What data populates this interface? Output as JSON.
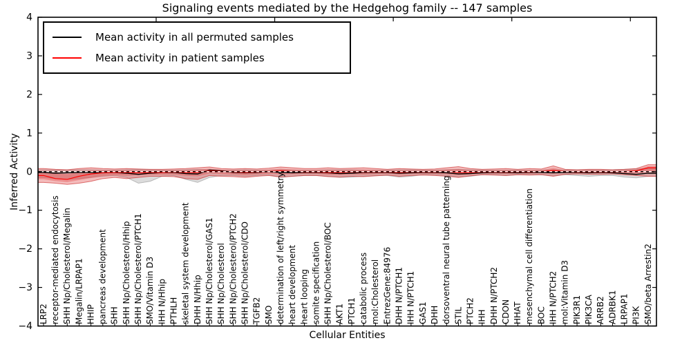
{
  "figure": {
    "title": "Signaling events mediated by the Hedgehog family -- 147 samples",
    "xlabel": "Cellular Entities",
    "ylabel": "Inferred Activity"
  },
  "axes": {
    "ylim": [
      -4,
      4
    ],
    "yticks": [
      "4",
      "3",
      "2",
      "1",
      "0",
      "−1",
      "−2",
      "−3",
      "−4"
    ],
    "top_major_ticks_at": [
      10,
      20,
      30,
      40,
      50
    ]
  },
  "colors": {
    "permuted_line": "#000000",
    "patient_line": "#ff0000",
    "patient_band": "#e04040",
    "permuted_band": "#8a8a8a",
    "axis": "#000000"
  },
  "chart_data": {
    "type": "line",
    "title": "Signaling events mediated by the Hedgehog family -- 147 samples",
    "xlabel": "Cellular Entities",
    "ylabel": "Inferred Activity",
    "ylim": [
      -4,
      4
    ],
    "grid": false,
    "legend_position": "upper left",
    "zero_line": "black-white dashed at y=0",
    "categories": [
      "LRP2",
      "receptor-mediated endocytosis",
      "SHH Np/Cholesterol/Megalin",
      "Megalin/LRPAP1",
      "HHIP",
      "pancreas development",
      "SHH",
      "SHH Np/Cholesterol/Hhip",
      "SHH Np/Cholesterol/PTCH1",
      "SMO/Vitamin D3",
      "IHH N/Hhip",
      "PTHLH",
      "skeletal system development",
      "DHH N/Hhip",
      "SHH Np/Cholesterol/GAS1",
      "SHH Np/Cholesterol",
      "SHH Np/Cholesterol/PTCH2",
      "SHH Np/Cholesterol/CDO",
      "TGFB2",
      "SMO",
      "determination of left/right symmetry",
      "heart development",
      "heart looping",
      "somite specification",
      "SHH Np/Cholesterol/BOC",
      "AKT1",
      "PTCH1",
      "catabolic process",
      "mol:Cholesterol",
      "EntrezGene:84976",
      "DHH N/PTCH1",
      "IHH N/PTCH1",
      "GAS1",
      "DHH",
      "dorsoventral neural tube patterning",
      "STIL",
      "PTCH2",
      "IHH",
      "DHH N/PTCH2",
      "CDON",
      "HHAT",
      "mesenchymal cell differentiation",
      "BOC",
      "IHH N/PTCH2",
      "mol:Vitamin D3",
      "PIK3R1",
      "PIK3CA",
      "ARRB2",
      "ADRBK1",
      "LRPAP1",
      "PI3K",
      "SMO/beta Arrestin2"
    ],
    "series": [
      {
        "name": "Mean activity in all permuted samples",
        "type": "line",
        "color": "#000000",
        "values": [
          -0.02,
          -0.04,
          -0.03,
          -0.02,
          -0.02,
          -0.03,
          -0.02,
          -0.04,
          -0.07,
          -0.04,
          -0.02,
          -0.02,
          -0.05,
          -0.06,
          0.04,
          0.02,
          -0.02,
          -0.03,
          -0.02,
          0.0,
          -0.02,
          -0.03,
          -0.02,
          -0.02,
          -0.03,
          -0.05,
          -0.04,
          -0.02,
          -0.02,
          -0.02,
          -0.04,
          -0.03,
          -0.02,
          -0.02,
          -0.03,
          -0.06,
          -0.05,
          -0.03,
          -0.02,
          -0.02,
          -0.03,
          -0.02,
          -0.02,
          -0.03,
          -0.02,
          -0.02,
          -0.03,
          -0.02,
          -0.03,
          -0.05,
          -0.07,
          -0.04
        ]
      },
      {
        "name": "Mean activity in patient samples",
        "type": "line",
        "color": "#ff0000",
        "values": [
          -0.1,
          -0.18,
          -0.2,
          -0.12,
          -0.06,
          -0.03,
          -0.02,
          -0.02,
          -0.03,
          -0.02,
          -0.02,
          -0.01,
          -0.02,
          -0.02,
          0.02,
          0.01,
          -0.01,
          -0.02,
          -0.01,
          0.0,
          0.02,
          0.0,
          -0.01,
          -0.01,
          -0.02,
          -0.02,
          -0.01,
          -0.01,
          -0.01,
          -0.01,
          -0.02,
          -0.01,
          -0.01,
          -0.01,
          0.0,
          -0.02,
          -0.02,
          -0.01,
          -0.01,
          -0.01,
          -0.01,
          -0.01,
          0.0,
          0.03,
          0.0,
          -0.01,
          -0.01,
          -0.01,
          -0.01,
          0.0,
          0.02,
          0.1
        ]
      },
      {
        "name": "Patient samples std band",
        "type": "band",
        "color": "#e04040",
        "upper": [
          0.08,
          0.06,
          0.05,
          0.08,
          0.1,
          0.08,
          0.07,
          0.08,
          0.07,
          0.06,
          0.06,
          0.07,
          0.08,
          0.1,
          0.12,
          0.08,
          0.07,
          0.08,
          0.07,
          0.09,
          0.12,
          0.1,
          0.08,
          0.08,
          0.1,
          0.08,
          0.09,
          0.1,
          0.08,
          0.06,
          0.08,
          0.07,
          0.06,
          0.07,
          0.1,
          0.13,
          0.08,
          0.06,
          0.07,
          0.08,
          0.06,
          0.08,
          0.07,
          0.15,
          0.06,
          0.05,
          0.06,
          0.06,
          0.05,
          0.06,
          0.08,
          0.18
        ],
        "lower": [
          -0.28,
          -0.3,
          -0.33,
          -0.3,
          -0.25,
          -0.18,
          -0.15,
          -0.18,
          -0.15,
          -0.12,
          -0.12,
          -0.13,
          -0.18,
          -0.2,
          -0.1,
          -0.12,
          -0.13,
          -0.15,
          -0.12,
          -0.1,
          -0.14,
          -0.12,
          -0.1,
          -0.1,
          -0.13,
          -0.14,
          -0.12,
          -0.13,
          -0.11,
          -0.09,
          -0.12,
          -0.1,
          -0.09,
          -0.1,
          -0.12,
          -0.15,
          -0.11,
          -0.08,
          -0.09,
          -0.1,
          -0.08,
          -0.09,
          -0.08,
          -0.12,
          -0.07,
          -0.06,
          -0.07,
          -0.07,
          -0.06,
          -0.08,
          -0.1,
          -0.12
        ]
      },
      {
        "name": "Permuted samples std band",
        "type": "band",
        "color": "#8a8a8a",
        "upper": [
          0.05,
          0.04,
          0.04,
          0.05,
          0.05,
          0.04,
          0.04,
          0.05,
          0.06,
          0.05,
          0.04,
          0.04,
          0.05,
          0.06,
          0.05,
          0.04,
          0.04,
          0.05,
          0.04,
          0.04,
          0.05,
          0.04,
          0.04,
          0.04,
          0.05,
          0.05,
          0.05,
          0.04,
          0.04,
          0.04,
          0.05,
          0.05,
          0.04,
          0.04,
          0.05,
          0.06,
          0.05,
          0.04,
          0.04,
          0.04,
          0.04,
          0.04,
          0.04,
          0.05,
          0.04,
          0.05,
          0.05,
          0.04,
          0.05,
          0.06,
          0.07,
          0.08
        ],
        "lower": [
          -0.15,
          -0.18,
          -0.2,
          -0.18,
          -0.15,
          -0.12,
          -0.1,
          -0.15,
          -0.3,
          -0.25,
          -0.12,
          -0.1,
          -0.2,
          -0.28,
          -0.15,
          -0.1,
          -0.1,
          -0.12,
          -0.1,
          -0.08,
          -0.15,
          -0.12,
          -0.1,
          -0.1,
          -0.12,
          -0.15,
          -0.14,
          -0.12,
          -0.1,
          -0.1,
          -0.14,
          -0.12,
          -0.08,
          -0.08,
          -0.1,
          -0.14,
          -0.12,
          -0.08,
          -0.08,
          -0.1,
          -0.08,
          -0.08,
          -0.08,
          -0.1,
          -0.08,
          -0.1,
          -0.12,
          -0.1,
          -0.1,
          -0.14,
          -0.16,
          -0.12
        ]
      }
    ]
  }
}
